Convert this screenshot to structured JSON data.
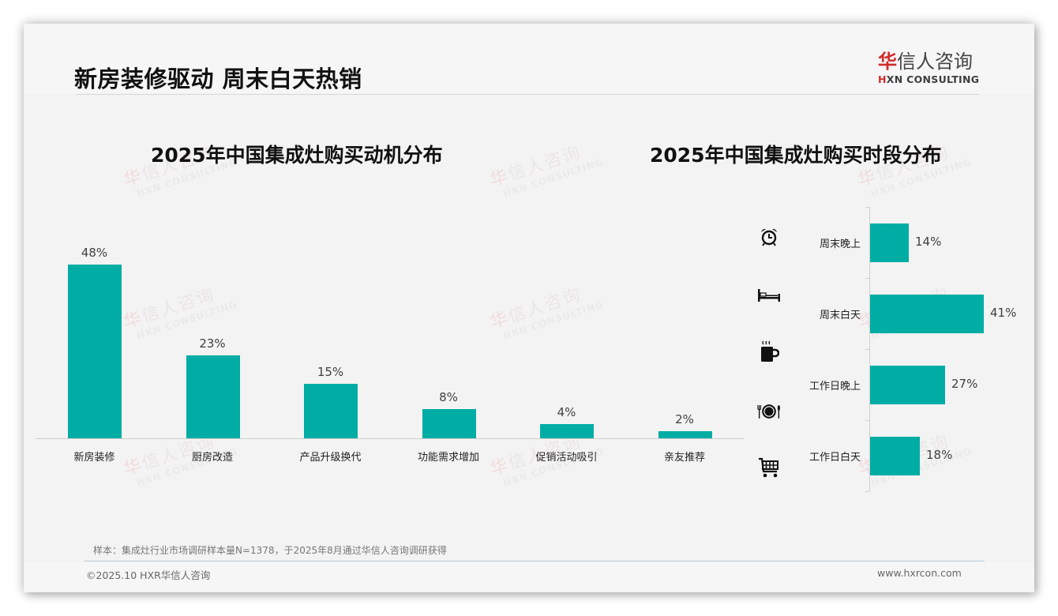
{
  "header": {
    "title": "新房装修驱动 周末白天热销",
    "logo": {
      "cn_accent": "华",
      "cn_rest": "信人咨询",
      "en_accent": "H",
      "en_rest": "XN CONSULTING"
    }
  },
  "watermark": {
    "cn_accent": "华",
    "cn_rest": "信人咨询",
    "en": "HXN CONSULTING"
  },
  "colors": {
    "bar": "#00ada4",
    "accent_red": "#d32a2a",
    "background": "#f3f3f3"
  },
  "chart_data": [
    {
      "type": "bar",
      "title": "2025年中国集成灶购买动机分布",
      "categories": [
        "新房装修",
        "厨房改造",
        "产品升级换代",
        "功能需求增加",
        "促销活动吸引",
        "亲友推荐"
      ],
      "values": [
        48,
        23,
        15,
        8,
        4,
        2
      ],
      "value_labels": [
        "48%",
        "23%",
        "15%",
        "8%",
        "4%",
        "2%"
      ],
      "xlabel": "",
      "ylabel": "",
      "unit": "%",
      "ylim": [
        0,
        50
      ],
      "grid": false,
      "legend": "none",
      "bar_color": "#00ada4"
    },
    {
      "type": "bar",
      "orientation": "horizontal",
      "title": "2025年中国集成灶购买时段分布",
      "categories": [
        "周末晚上",
        "周末白天",
        "工作日晚上",
        "工作日白天"
      ],
      "values": [
        14,
        41,
        27,
        18
      ],
      "value_labels": [
        "14%",
        "41%",
        "27%",
        "18%"
      ],
      "icons": [
        "alarm-clock-icon",
        "bed-icon",
        "coffee-mug-icon",
        "plate-cutlery-icon",
        "shopping-cart-icon"
      ],
      "xlabel": "",
      "ylabel": "",
      "unit": "%",
      "xlim": [
        0,
        45
      ],
      "grid": false,
      "legend": "none",
      "bar_color": "#00ada4"
    }
  ],
  "footer": {
    "note": "样本：集成灶行业市场调研样本量N=1378，于2025年8月通过华信人咨询调研获得",
    "copyright": "©2025.10 HXR华信人咨询",
    "website": "www.hxrcon.com"
  }
}
